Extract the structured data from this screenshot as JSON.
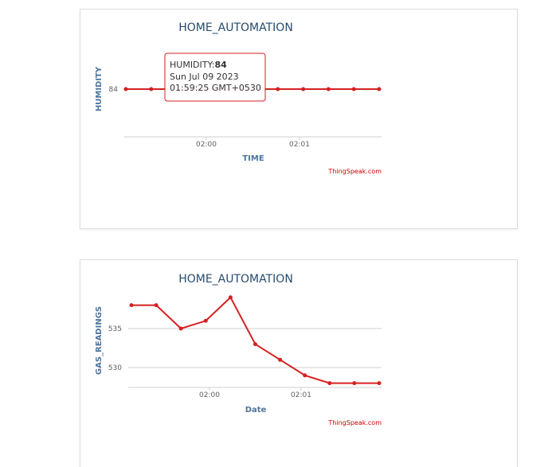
{
  "colors": {
    "series": "#d62020",
    "title": "#274b6d",
    "axis_title": "#4d759e",
    "credit": "#cc0000",
    "grid": "#cfcfcf"
  },
  "chart_data": [
    {
      "type": "line",
      "title": "HOME_AUTOMATION",
      "xlabel": "TIME",
      "ylabel": "HUMIDITY",
      "x_ticks": [
        "02:00",
        "02:01"
      ],
      "y_ticks": [
        "84"
      ],
      "credit": "ThingSpeak.com",
      "series": [
        {
          "values": [
            84,
            84,
            84,
            84,
            84,
            84,
            84,
            84,
            84,
            84,
            84
          ]
        }
      ],
      "tooltip": {
        "label": "HUMIDITY:",
        "value": "84",
        "date": "Sun Jul 09 2023",
        "time": "01:59:25 GMT+0530"
      }
    },
    {
      "type": "line",
      "title": "HOME_AUTOMATION",
      "xlabel": "Date",
      "ylabel": "GAS_READINGS",
      "x_ticks": [
        "02:00",
        "02:01"
      ],
      "y_ticks": [
        "535",
        "530"
      ],
      "credit": "ThingSpeak.com",
      "series": [
        {
          "values": [
            538,
            538,
            535,
            536,
            539,
            533,
            531,
            529,
            528,
            528,
            528
          ]
        }
      ]
    }
  ]
}
